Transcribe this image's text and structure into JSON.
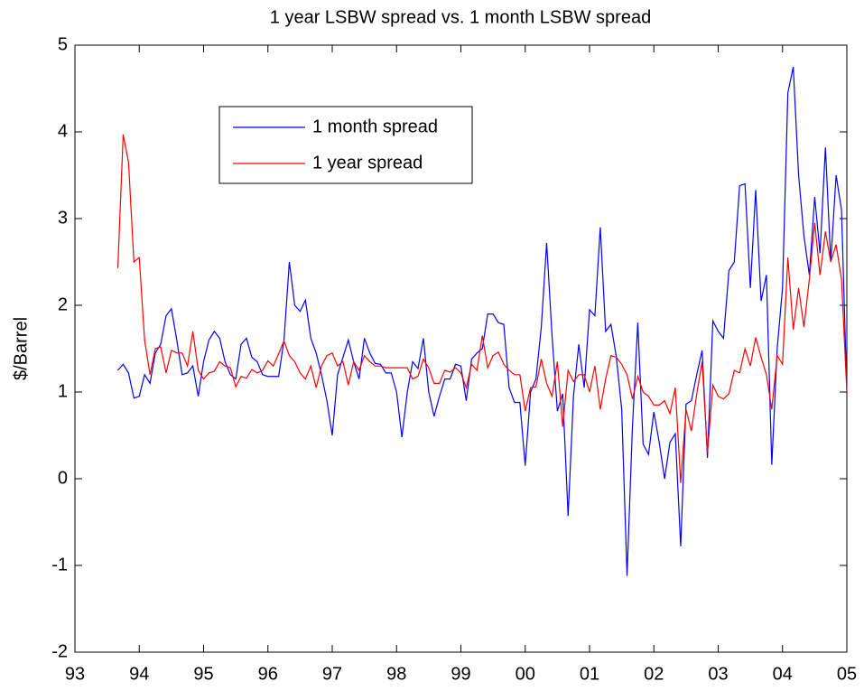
{
  "chart_data": {
    "type": "line",
    "title": "1 year LSBW spread vs. 1 month LSBW spread",
    "y_label": "$/Barrel",
    "x": [
      1993.667,
      1993.75,
      1993.833,
      1993.917,
      1994,
      1994.083,
      1994.167,
      1994.25,
      1994.333,
      1994.417,
      1994.5,
      1994.583,
      1994.667,
      1994.75,
      1994.833,
      1994.917,
      1995,
      1995.083,
      1995.167,
      1995.25,
      1995.333,
      1995.417,
      1995.5,
      1995.583,
      1995.667,
      1995.75,
      1995.833,
      1995.917,
      1996,
      1996.083,
      1996.167,
      1996.25,
      1996.333,
      1996.417,
      1996.5,
      1996.583,
      1996.667,
      1996.75,
      1996.833,
      1996.917,
      1997,
      1997.083,
      1997.167,
      1997.25,
      1997.333,
      1997.417,
      1997.5,
      1997.583,
      1997.667,
      1997.75,
      1997.833,
      1997.917,
      1998,
      1998.083,
      1998.167,
      1998.25,
      1998.333,
      1998.417,
      1998.5,
      1998.583,
      1998.667,
      1998.75,
      1998.833,
      1998.917,
      1999,
      1999.083,
      1999.167,
      1999.25,
      1999.333,
      1999.417,
      1999.5,
      1999.583,
      1999.667,
      1999.75,
      1999.833,
      1999.917,
      2000,
      2000.083,
      2000.167,
      2000.25,
      2000.333,
      2000.417,
      2000.5,
      2000.583,
      2000.667,
      2000.75,
      2000.833,
      2000.917,
      2001,
      2001.083,
      2001.167,
      2001.25,
      2001.333,
      2001.417,
      2001.5,
      2001.583,
      2001.667,
      2001.75,
      2001.833,
      2001.917,
      2002,
      2002.083,
      2002.167,
      2002.25,
      2002.333,
      2002.417,
      2002.5,
      2002.583,
      2002.667,
      2002.75,
      2002.833,
      2002.917,
      2003,
      2003.083,
      2003.167,
      2003.25,
      2003.333,
      2003.417,
      2003.5,
      2003.583,
      2003.667,
      2003.75,
      2003.833,
      2003.917,
      2004,
      2004.083,
      2004.167,
      2004.25,
      2004.333,
      2004.417,
      2004.5,
      2004.583,
      2004.667,
      2004.75,
      2004.833,
      2004.917,
      2005
    ],
    "series": [
      {
        "name": "1 month spread",
        "color": "#0000ff",
        "values": [
          1.25,
          1.32,
          1.22,
          0.93,
          0.95,
          1.2,
          1.1,
          1.45,
          1.55,
          1.88,
          1.96,
          1.6,
          1.2,
          1.22,
          1.3,
          0.95,
          1.35,
          1.6,
          1.7,
          1.62,
          1.35,
          1.2,
          1.15,
          1.55,
          1.62,
          1.4,
          1.35,
          1.2,
          1.18,
          1.18,
          1.18,
          1.6,
          2.5,
          2.0,
          1.93,
          2.06,
          1.62,
          1.45,
          1.2,
          0.9,
          0.5,
          1.2,
          1.4,
          1.6,
          1.35,
          1.15,
          1.62,
          1.45,
          1.33,
          1.32,
          1.22,
          1.22,
          1.0,
          0.48,
          1.0,
          1.35,
          1.27,
          1.62,
          1.0,
          0.72,
          0.95,
          1.15,
          1.15,
          1.32,
          1.3,
          0.9,
          1.38,
          1.45,
          1.5,
          1.9,
          1.9,
          1.8,
          1.78,
          1.05,
          0.88,
          0.88,
          0.15,
          1.0,
          1.15,
          1.75,
          2.72,
          1.65,
          0.78,
          0.98,
          -0.43,
          0.95,
          1.55,
          1.05,
          1.95,
          1.88,
          2.9,
          1.7,
          1.78,
          1.4,
          0.8,
          -1.12,
          0.6,
          1.8,
          0.4,
          0.28,
          0.77,
          0.42,
          0.0,
          0.42,
          0.52,
          -0.78,
          0.86,
          0.9,
          1.2,
          1.48,
          0.24,
          1.82,
          1.7,
          1.62,
          2.4,
          2.5,
          3.38,
          3.4,
          2.2,
          3.33,
          2.05,
          2.35,
          0.16,
          1.5,
          2.2,
          4.45,
          4.75,
          3.5,
          2.8,
          2.35,
          3.25,
          2.6,
          3.82,
          2.5,
          3.5,
          3.1,
          1.0
        ]
      },
      {
        "name": "1 year spread",
        "color": "#ff0000",
        "values": [
          2.43,
          3.97,
          3.65,
          2.5,
          2.55,
          1.6,
          1.2,
          1.5,
          1.52,
          1.22,
          1.48,
          1.45,
          1.45,
          1.3,
          1.7,
          1.25,
          1.15,
          1.22,
          1.24,
          1.35,
          1.3,
          1.28,
          1.06,
          1.18,
          1.16,
          1.26,
          1.22,
          1.25,
          1.36,
          1.3,
          1.44,
          1.59,
          1.42,
          1.35,
          1.22,
          1.15,
          1.3,
          1.05,
          1.3,
          1.42,
          1.45,
          1.3,
          1.35,
          1.08,
          1.35,
          1.25,
          1.42,
          1.35,
          1.3,
          1.3,
          1.28,
          1.28,
          1.28,
          1.28,
          1.28,
          1.15,
          1.18,
          1.38,
          1.28,
          1.1,
          1.1,
          1.25,
          1.23,
          1.28,
          1.22,
          1.05,
          1.32,
          1.25,
          1.65,
          1.28,
          1.42,
          1.46,
          1.32,
          1.25,
          1.2,
          1.2,
          0.78,
          1.05,
          1.06,
          1.38,
          1.1,
          0.95,
          1.35,
          0.6,
          1.25,
          1.12,
          1.2,
          1.2,
          1.0,
          1.3,
          0.8,
          1.15,
          1.42,
          1.4,
          1.32,
          1.2,
          0.92,
          1.18,
          1.0,
          0.95,
          0.85,
          0.85,
          0.9,
          0.75,
          1.05,
          -0.05,
          0.8,
          0.55,
          0.98,
          1.35,
          0.3,
          1.08,
          0.95,
          0.92,
          0.98,
          1.25,
          1.22,
          1.5,
          1.3,
          1.63,
          1.4,
          1.2,
          0.8,
          1.42,
          1.32,
          2.55,
          1.72,
          2.2,
          1.75,
          2.3,
          2.95,
          2.35,
          2.85,
          2.5,
          2.7,
          2.3,
          1.0
        ]
      }
    ],
    "xlim": [
      1993,
      2005
    ],
    "xticks": [
      {
        "value": 1993,
        "label": "93"
      },
      {
        "value": 1994,
        "label": "94"
      },
      {
        "value": 1995,
        "label": "95"
      },
      {
        "value": 1996,
        "label": "96"
      },
      {
        "value": 1997,
        "label": "97"
      },
      {
        "value": 1998,
        "label": "98"
      },
      {
        "value": 1999,
        "label": "99"
      },
      {
        "value": 2000,
        "label": "00"
      },
      {
        "value": 2001,
        "label": "01"
      },
      {
        "value": 2002,
        "label": "02"
      },
      {
        "value": 2003,
        "label": "03"
      },
      {
        "value": 2004,
        "label": "04"
      },
      {
        "value": 2005,
        "label": "05"
      }
    ],
    "ylim": [
      -2,
      5
    ],
    "yticks": [
      -2,
      -1,
      0,
      1,
      2,
      3,
      4,
      5
    ],
    "legend": "upper left"
  }
}
